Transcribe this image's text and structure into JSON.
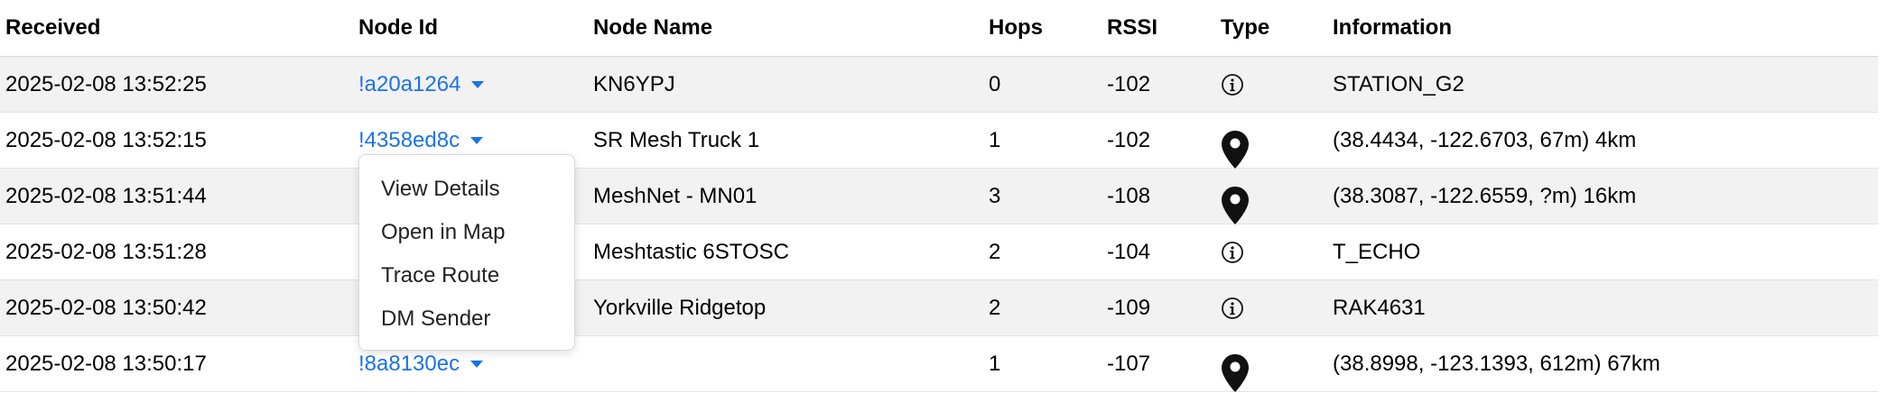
{
  "columns": {
    "received": "Received",
    "node_id": "Node Id",
    "node_name": "Node Name",
    "hops": "Hops",
    "rssi": "RSSI",
    "type": "Type",
    "information": "Information"
  },
  "rows": [
    {
      "received": "2025-02-08 13:52:25",
      "node_id": "!a20a1264",
      "node_name": "KN6YPJ",
      "hops": "0",
      "rssi": "-102",
      "type_icon": "info-icon",
      "information": "STATION_G2"
    },
    {
      "received": "2025-02-08 13:52:15",
      "node_id": "!4358ed8c",
      "node_name": "SR Mesh Truck 1",
      "hops": "1",
      "rssi": "-102",
      "type_icon": "map-pin-icon",
      "information": "(38.4434, -122.6703, 67m) 4km"
    },
    {
      "received": "2025-02-08 13:51:44",
      "node_id": "",
      "node_name": "MeshNet - MN01",
      "hops": "3",
      "rssi": "-108",
      "type_icon": "map-pin-icon",
      "information": "(38.3087, -122.6559, ?m) 16km"
    },
    {
      "received": "2025-02-08 13:51:28",
      "node_id": "",
      "node_name": "Meshtastic 6STOSC",
      "hops": "2",
      "rssi": "-104",
      "type_icon": "info-icon",
      "information": "T_ECHO"
    },
    {
      "received": "2025-02-08 13:50:42",
      "node_id": "",
      "node_name": "Yorkville Ridgetop",
      "hops": "2",
      "rssi": "-109",
      "type_icon": "info-icon",
      "information": "RAK4631"
    },
    {
      "received": "2025-02-08 13:50:17",
      "node_id": "!8a8130ec",
      "node_name": "",
      "hops": "1",
      "rssi": "-107",
      "type_icon": "map-pin-icon",
      "information": "(38.8998, -123.1393, 612m) 67km"
    }
  ],
  "dropdown_menu": {
    "items": [
      "View Details",
      "Open in Map",
      "Trace Route",
      "DM Sender"
    ]
  },
  "colors": {
    "link": "#1a73e8",
    "row_shade": "#f2f2f2"
  }
}
